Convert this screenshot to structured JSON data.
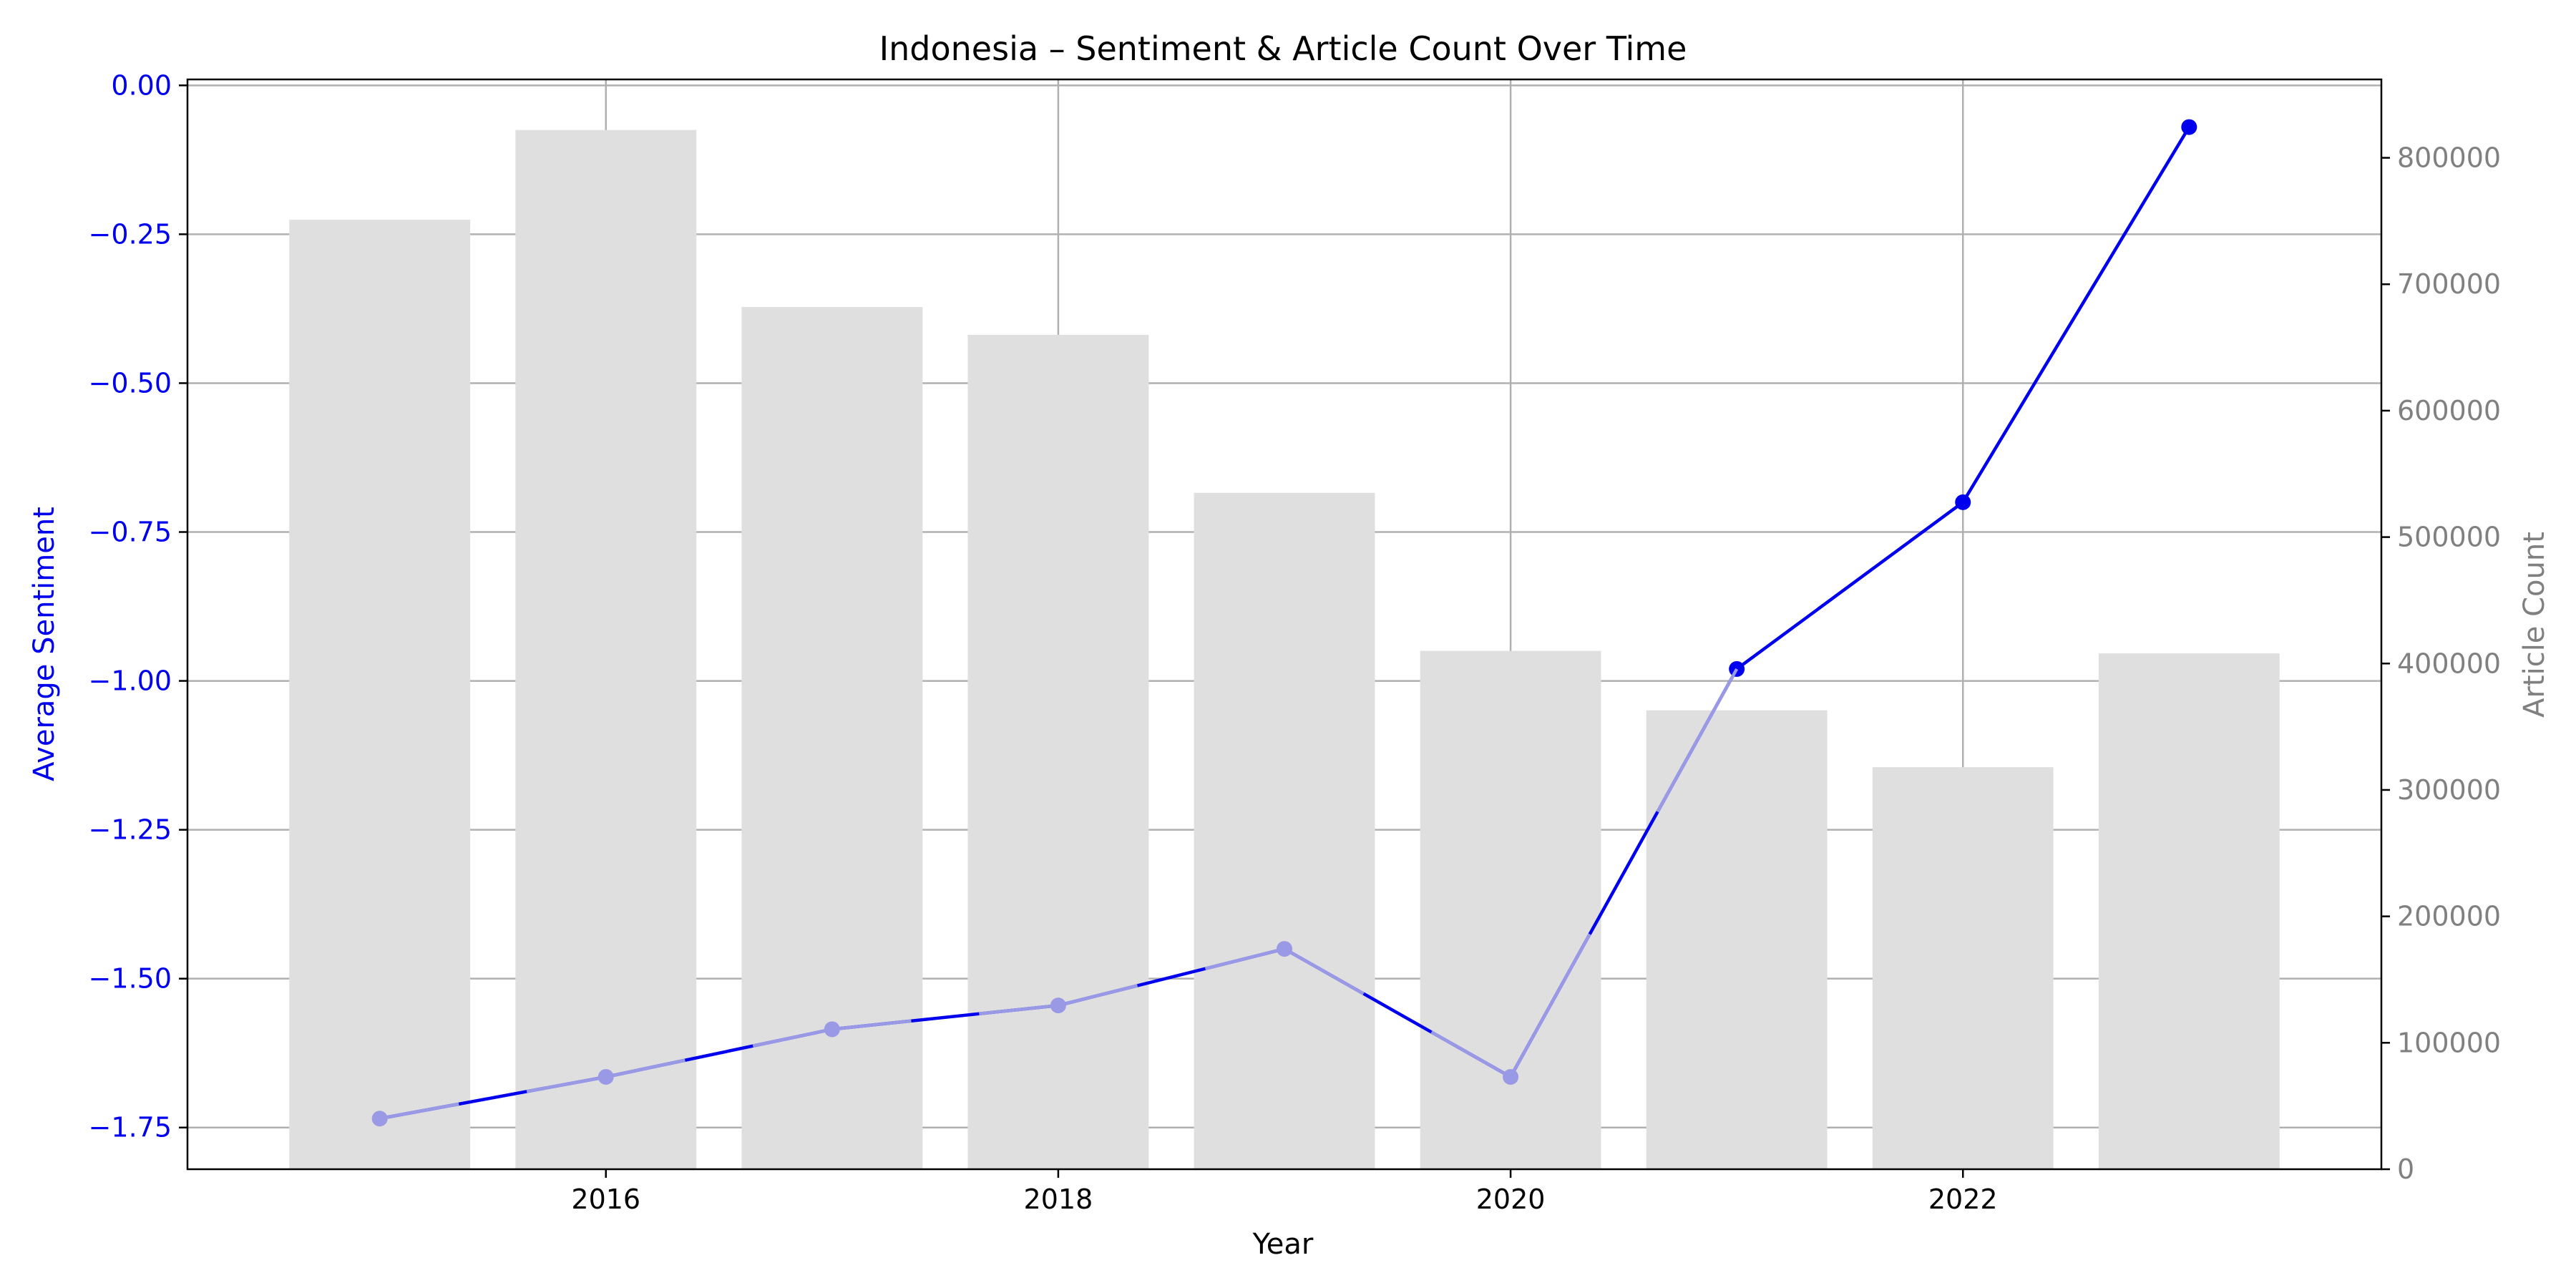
{
  "chart_data": {
    "type": "bar+line",
    "title": "Indonesia – Sentiment & Article Count Over Time",
    "xlabel": "Year",
    "y_left_label": "Average Sentiment",
    "y_right_label": "Article Count",
    "xlim": [
      2014.15,
      2023.85
    ],
    "x_ticks": [
      2016,
      2018,
      2020,
      2022
    ],
    "y_left_lim": [
      -1.82,
      0.01
    ],
    "y_left_ticks": [
      0.0,
      -0.25,
      -0.5,
      -0.75,
      -1.0,
      -1.25,
      -1.5,
      -1.75
    ],
    "y_left_tick_labels": [
      "0.00",
      "−0.25",
      "−0.50",
      "−0.75",
      "−1.00",
      "−1.25",
      "−1.50",
      "−1.75"
    ],
    "y_right_lim": [
      0,
      862000
    ],
    "y_right_ticks": [
      0,
      100000,
      200000,
      300000,
      400000,
      500000,
      600000,
      700000,
      800000
    ],
    "y_right_tick_labels": [
      "0",
      "100000",
      "200000",
      "300000",
      "400000",
      "500000",
      "600000",
      "700000",
      "800000"
    ],
    "grid": true,
    "bar_series": {
      "name": "Article Count",
      "x": [
        2015,
        2016,
        2017,
        2018,
        2019,
        2020,
        2021,
        2022,
        2023
      ],
      "values": [
        751000,
        822000,
        682000,
        660000,
        535000,
        410000,
        363000,
        318000,
        408000
      ]
    },
    "line_series": {
      "name": "Average Sentiment",
      "x": [
        2015,
        2016,
        2017,
        2018,
        2019,
        2020,
        2021,
        2022,
        2023
      ],
      "values": [
        -1.735,
        -1.665,
        -1.585,
        -1.545,
        -1.45,
        -1.665,
        -0.98,
        -0.7,
        -0.07
      ]
    },
    "colors": {
      "line": "#0000ee",
      "bars": "#dfdfdf",
      "left_axis": "#0000ee",
      "right_axis": "#808080",
      "grid": "#b0b0b0"
    }
  }
}
